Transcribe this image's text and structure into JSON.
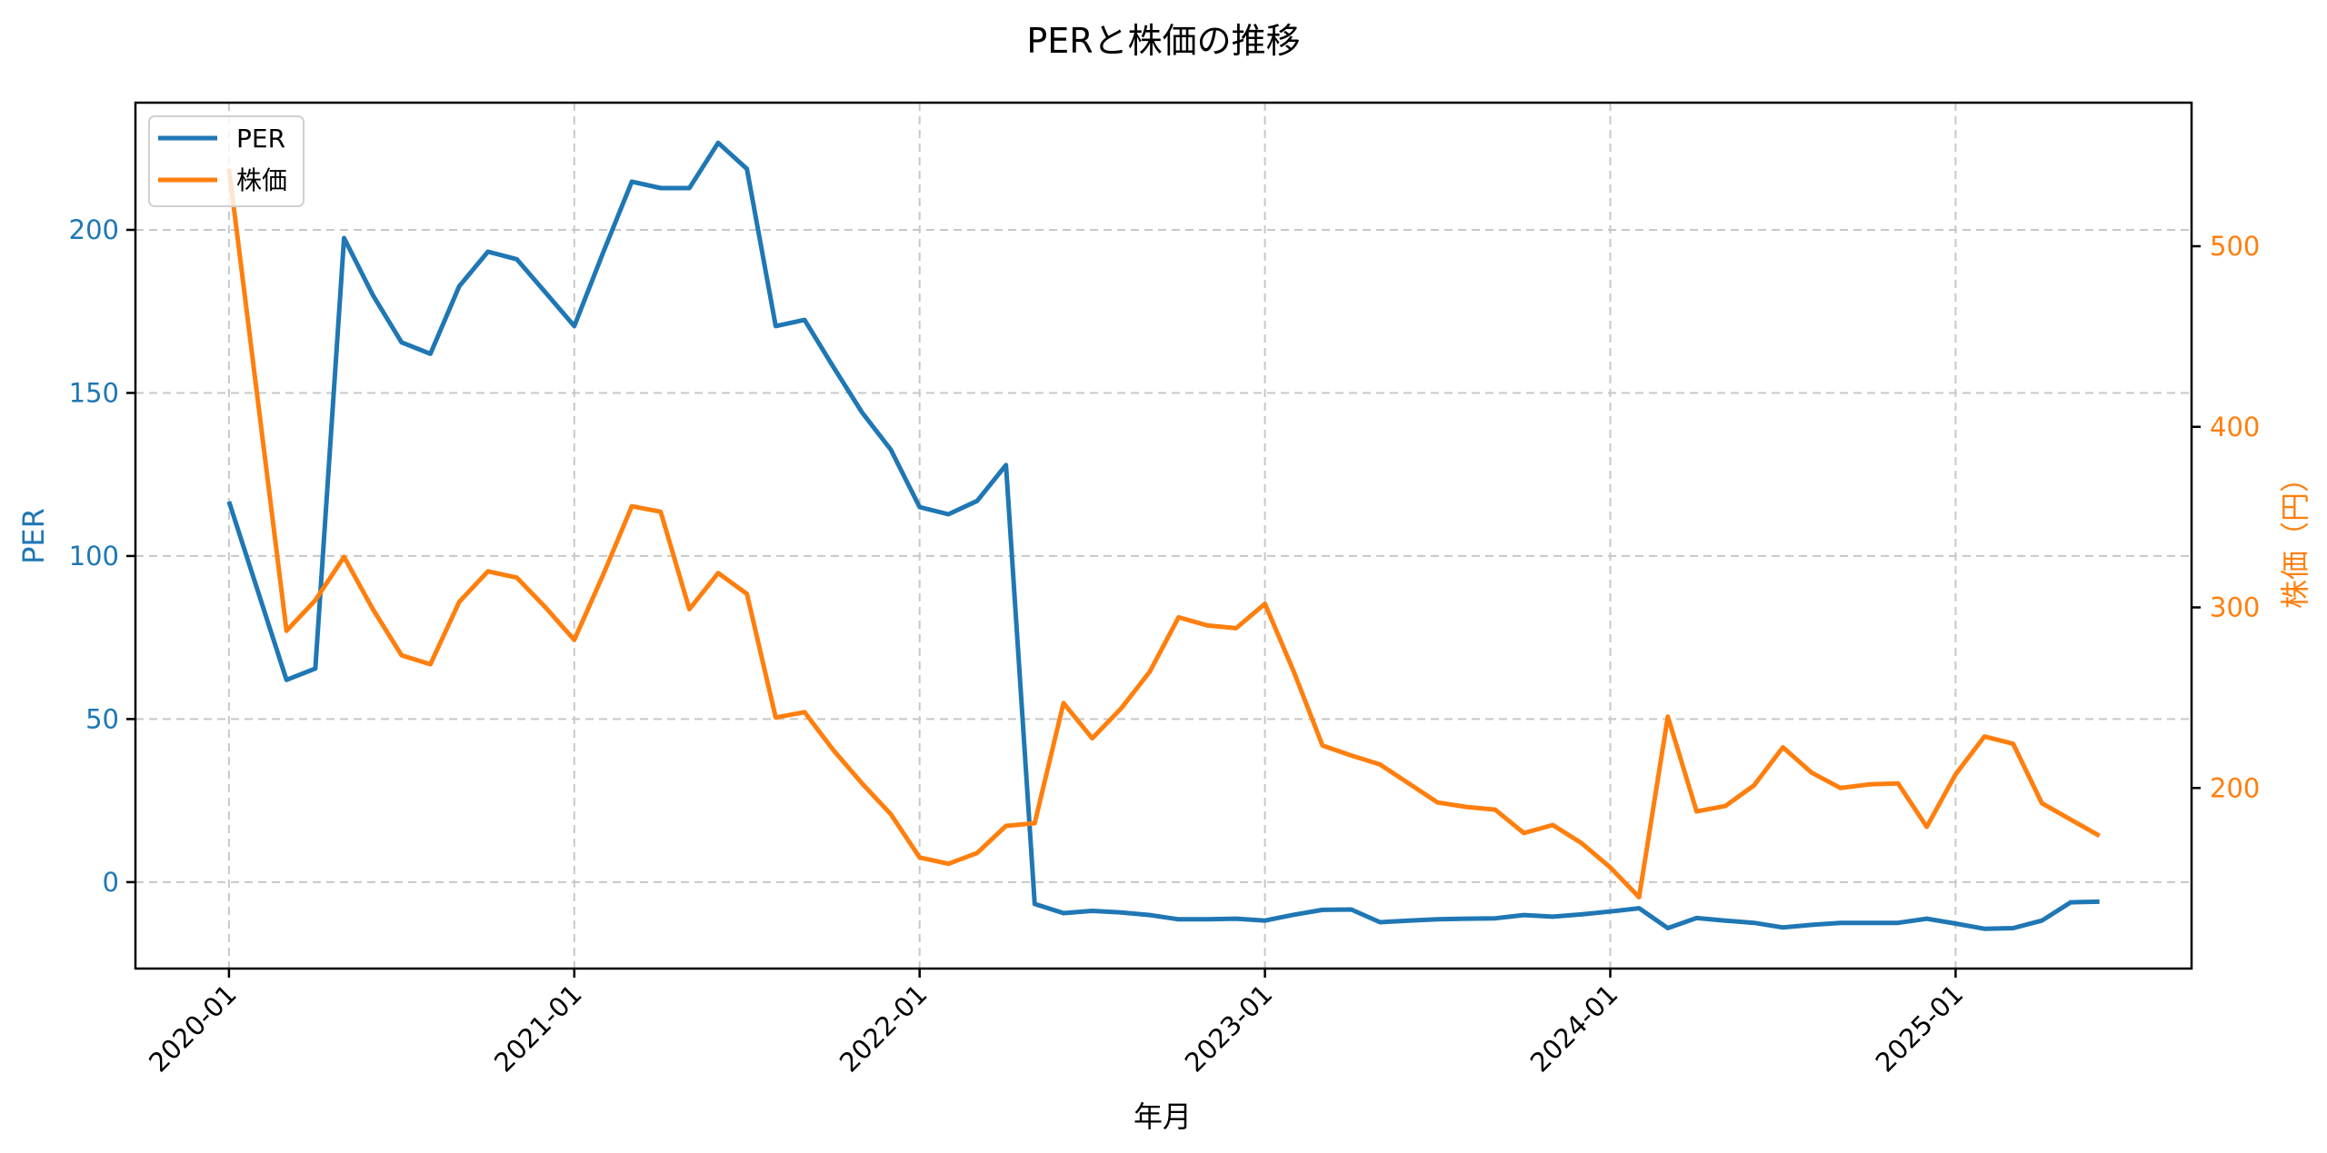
{
  "chart_data": {
    "type": "line",
    "title": "PERと株価の推移",
    "xlabel": "年月",
    "ylabel_left": "PER",
    "ylabel_right": "株価（円）",
    "x_ticks": [
      "2020-01",
      "2021-01",
      "2022-01",
      "2023-01",
      "2024-01",
      "2025-01"
    ],
    "y_left_ticks": [
      0,
      50,
      100,
      150,
      200
    ],
    "y_right_ticks": [
      200,
      300,
      400,
      500
    ],
    "y_left_range": [
      -26.5,
      239
    ],
    "y_right_range": [
      100,
      579.5
    ],
    "x_range_months_from_2020_01": [
      -3.25,
      68.2
    ],
    "grid": true,
    "grid_style": "dashed",
    "legend_position": "upper left",
    "legend": [
      "PER",
      "株価"
    ],
    "x": [
      "2020-01",
      "2020-03",
      "2020-04",
      "2020-05",
      "2020-06",
      "2020-07",
      "2020-08",
      "2020-09",
      "2020-10",
      "2020-11",
      "2020-12",
      "2021-01",
      "2021-02",
      "2021-03",
      "2021-04",
      "2021-05",
      "2021-06",
      "2021-07",
      "2021-08",
      "2021-09",
      "2021-10",
      "2021-11",
      "2021-12",
      "2022-01",
      "2022-02",
      "2022-03",
      "2022-04",
      "2022-05",
      "2022-06",
      "2022-07",
      "2022-08",
      "2022-09",
      "2022-10",
      "2022-11",
      "2022-12",
      "2023-01",
      "2023-02",
      "2023-03",
      "2023-04",
      "2023-05",
      "2023-06",
      "2023-07",
      "2023-08",
      "2023-09",
      "2023-10",
      "2023-11",
      "2023-12",
      "2024-01",
      "2024-02",
      "2024-03",
      "2024-04",
      "2024-05",
      "2024-06",
      "2024-07",
      "2024-08",
      "2024-09",
      "2024-10",
      "2024-11",
      "2024-12",
      "2025-01",
      "2025-02",
      "2025-03",
      "2025-04",
      "2025-05",
      "2025-06"
    ],
    "series": [
      {
        "name": "PER",
        "axis": "left",
        "color": "#1f77b4",
        "values": [
          116.7,
          62,
          65.5,
          197.5,
          180,
          165.5,
          162,
          182.7,
          193.3,
          191,
          180.8,
          170.5,
          193,
          214.8,
          212.8,
          212.8,
          226.7,
          218.7,
          170.5,
          172.4,
          158,
          144,
          132.6,
          115,
          112.8,
          116.9,
          127.9,
          -6.7,
          -9.5,
          -8.8,
          -9.3,
          -10.1,
          -11.4,
          -11.4,
          -11.2,
          -11.8,
          -10,
          -8.5,
          -8.4,
          -12.3,
          -11.8,
          -11.4,
          -11.2,
          -11.1,
          -10.1,
          -10.6,
          -9.9,
          -9,
          -8,
          -14.1,
          -11,
          -11.8,
          -12.5,
          -13.9,
          -13.1,
          -12.5,
          -12.5,
          -12.5,
          -11.2,
          -12.7,
          -14.3,
          -14.1,
          -11.8,
          -6.2,
          -6
        ]
      },
      {
        "name": "株価",
        "axis": "right",
        "color": "#ff7f0e",
        "values": [
          543,
          287,
          304,
          328,
          299,
          273.5,
          268.5,
          303,
          320,
          316.5,
          300,
          282,
          318,
          356,
          353,
          299,
          319,
          307.5,
          239,
          242,
          221,
          202.5,
          185.5,
          161.5,
          158,
          164,
          179,
          180.5,
          247,
          227.5,
          244,
          264.5,
          294.5,
          290,
          288.5,
          302,
          264.5,
          223.5,
          218,
          213,
          202.5,
          192,
          189.5,
          188,
          175,
          179.5,
          169.5,
          156,
          139.5,
          239.5,
          187,
          190,
          201.5,
          222.5,
          208.5,
          200,
          202,
          202.5,
          178.5,
          207.5,
          228.5,
          224.5,
          191.5,
          182.5,
          173.5
        ]
      }
    ]
  },
  "colors": {
    "per": "#1f77b4",
    "price": "#ff7f0e",
    "grid": "#c8c8c8",
    "axis": "#000000"
  }
}
